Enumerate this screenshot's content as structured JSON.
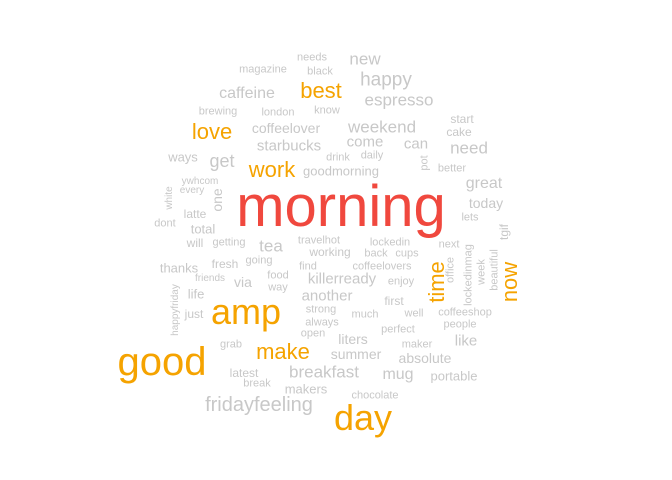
{
  "colors": {
    "top": "#f0483e",
    "high": "#f5a300",
    "low": "#c8c8c8"
  },
  "words": [
    {
      "text": "morning",
      "tier": "top"
    },
    {
      "text": "good",
      "tier": "high"
    },
    {
      "text": "amp",
      "tier": "high"
    },
    {
      "text": "day",
      "tier": "high"
    },
    {
      "text": "make",
      "tier": "high"
    },
    {
      "text": "work",
      "tier": "high"
    },
    {
      "text": "love",
      "tier": "high"
    },
    {
      "text": "best",
      "tier": "high"
    },
    {
      "text": "time",
      "tier": "high"
    },
    {
      "text": "now",
      "tier": "high"
    },
    {
      "text": "new",
      "tier": "low"
    },
    {
      "text": "needs",
      "tier": "low"
    },
    {
      "text": "black",
      "tier": "low"
    },
    {
      "text": "magazine",
      "tier": "low"
    },
    {
      "text": "happy",
      "tier": "low"
    },
    {
      "text": "caffeine",
      "tier": "low"
    },
    {
      "text": "espresso",
      "tier": "low"
    },
    {
      "text": "brewing",
      "tier": "low"
    },
    {
      "text": "london",
      "tier": "low"
    },
    {
      "text": "know",
      "tier": "low"
    },
    {
      "text": "start",
      "tier": "low"
    },
    {
      "text": "coffeelover",
      "tier": "low"
    },
    {
      "text": "weekend",
      "tier": "low"
    },
    {
      "text": "cake",
      "tier": "low"
    },
    {
      "text": "starbucks",
      "tier": "low"
    },
    {
      "text": "come",
      "tier": "low"
    },
    {
      "text": "can",
      "tier": "low"
    },
    {
      "text": "need",
      "tier": "low"
    },
    {
      "text": "ways",
      "tier": "low"
    },
    {
      "text": "get",
      "tier": "low"
    },
    {
      "text": "drink",
      "tier": "low"
    },
    {
      "text": "daily",
      "tier": "low"
    },
    {
      "text": "pot",
      "tier": "low"
    },
    {
      "text": "better",
      "tier": "low"
    },
    {
      "text": "goodmorning",
      "tier": "low"
    },
    {
      "text": "ywhcom",
      "tier": "low"
    },
    {
      "text": "every",
      "tier": "low"
    },
    {
      "text": "white",
      "tier": "low"
    },
    {
      "text": "one",
      "tier": "low"
    },
    {
      "text": "great",
      "tier": "low"
    },
    {
      "text": "today",
      "tier": "low"
    },
    {
      "text": "latte",
      "tier": "low"
    },
    {
      "text": "dont",
      "tier": "low"
    },
    {
      "text": "total",
      "tier": "low"
    },
    {
      "text": "lets",
      "tier": "low"
    },
    {
      "text": "tgif",
      "tier": "low"
    },
    {
      "text": "will",
      "tier": "low"
    },
    {
      "text": "getting",
      "tier": "low"
    },
    {
      "text": "tea",
      "tier": "low"
    },
    {
      "text": "travelhot",
      "tier": "low"
    },
    {
      "text": "lockedin",
      "tier": "low"
    },
    {
      "text": "next",
      "tier": "low"
    },
    {
      "text": "working",
      "tier": "low"
    },
    {
      "text": "back",
      "tier": "low"
    },
    {
      "text": "cups",
      "tier": "low"
    },
    {
      "text": "office",
      "tier": "low"
    },
    {
      "text": "lockedinmag",
      "tier": "low"
    },
    {
      "text": "week",
      "tier": "low"
    },
    {
      "text": "beautiful",
      "tier": "low"
    },
    {
      "text": "thanks",
      "tier": "low"
    },
    {
      "text": "fresh",
      "tier": "low"
    },
    {
      "text": "going",
      "tier": "low"
    },
    {
      "text": "find",
      "tier": "low"
    },
    {
      "text": "coffeelovers",
      "tier": "low"
    },
    {
      "text": "friends",
      "tier": "low"
    },
    {
      "text": "via",
      "tier": "low"
    },
    {
      "text": "food",
      "tier": "low"
    },
    {
      "text": "killerready",
      "tier": "low"
    },
    {
      "text": "enjoy",
      "tier": "low"
    },
    {
      "text": "way",
      "tier": "low"
    },
    {
      "text": "life",
      "tier": "low"
    },
    {
      "text": "another",
      "tier": "low"
    },
    {
      "text": "first",
      "tier": "low"
    },
    {
      "text": "happyfriday",
      "tier": "low"
    },
    {
      "text": "just",
      "tier": "low"
    },
    {
      "text": "strong",
      "tier": "low"
    },
    {
      "text": "well",
      "tier": "low"
    },
    {
      "text": "coffeeshop",
      "tier": "low"
    },
    {
      "text": "always",
      "tier": "low"
    },
    {
      "text": "much",
      "tier": "low"
    },
    {
      "text": "people",
      "tier": "low"
    },
    {
      "text": "open",
      "tier": "low"
    },
    {
      "text": "perfect",
      "tier": "low"
    },
    {
      "text": "liters",
      "tier": "low"
    },
    {
      "text": "like",
      "tier": "low"
    },
    {
      "text": "grab",
      "tier": "low"
    },
    {
      "text": "maker",
      "tier": "low"
    },
    {
      "text": "summer",
      "tier": "low"
    },
    {
      "text": "absolute",
      "tier": "low"
    },
    {
      "text": "latest",
      "tier": "low"
    },
    {
      "text": "breakfast",
      "tier": "low"
    },
    {
      "text": "mug",
      "tier": "low"
    },
    {
      "text": "portable",
      "tier": "low"
    },
    {
      "text": "break",
      "tier": "low"
    },
    {
      "text": "makers",
      "tier": "low"
    },
    {
      "text": "chocolate",
      "tier": "low"
    },
    {
      "text": "fridayfeeling",
      "tier": "low"
    }
  ]
}
